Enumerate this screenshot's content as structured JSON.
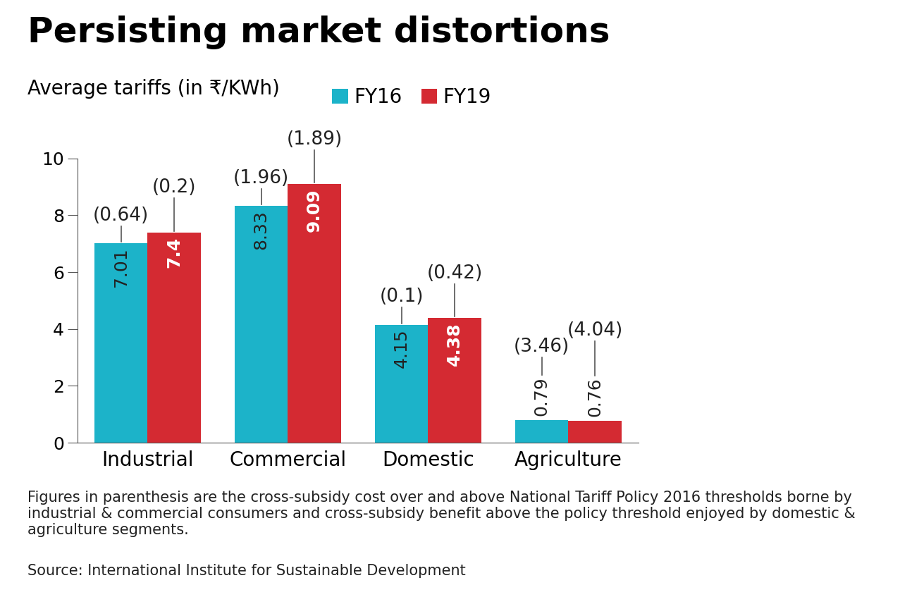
{
  "chart_data": {
    "type": "bar",
    "title": "Persisting market distortions",
    "subtitle": "Average tariffs (in ₹/KWh)",
    "categories": [
      "Industrial",
      "Commercial",
      "Domestic",
      "Agriculture"
    ],
    "series": [
      {
        "name": "FY16",
        "color": "#1cb3c9",
        "values": [
          7.01,
          8.33,
          4.15,
          0.79
        ],
        "cross_subsidy": [
          0.64,
          1.96,
          0.1,
          3.46
        ],
        "cross_subsidy_labels": [
          "(0.64)",
          "(1.96)",
          "(0.1)",
          "(3.46)"
        ]
      },
      {
        "name": "FY19",
        "color": "#d42a32",
        "values": [
          7.4,
          9.09,
          4.38,
          0.76
        ],
        "cross_subsidy": [
          0.2,
          1.89,
          0.42,
          4.04
        ],
        "cross_subsidy_labels": [
          "(0.2)",
          "(1.89)",
          "(0.42)",
          "(4.04)"
        ]
      }
    ],
    "ylim": [
      0,
      10
    ],
    "yticks": [
      0,
      2,
      4,
      6,
      8,
      10
    ],
    "grid": false,
    "legend": "upper left",
    "data_labels": true,
    "note": "Figures in parenthesis are the cross-subsidy cost over and above National Tariff Policy 2016 thresholds borne by industrial & commercial consumers and cross-subsidy benefit above the policy threshold enjoyed by domestic & agriculture segments.",
    "source": "Source: International Institute for Sustainable Development"
  }
}
